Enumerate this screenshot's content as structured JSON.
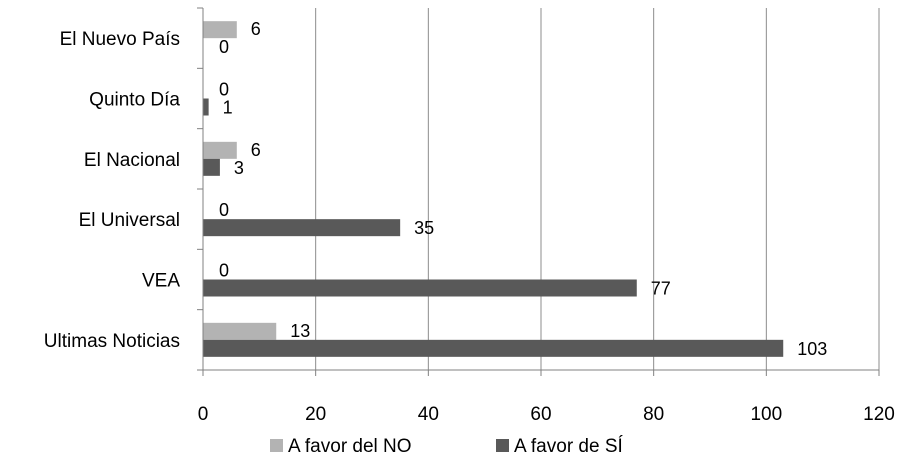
{
  "chart_data": {
    "type": "bar",
    "orientation": "horizontal",
    "categories": [
      "El Nuevo País",
      "Quinto Día",
      "El Nacional",
      "El Universal",
      "VEA",
      "Ultimas Noticias"
    ],
    "series": [
      {
        "name": "A favor del NO",
        "values": [
          6,
          0,
          6,
          0,
          0,
          13
        ],
        "color": "#b3b3b3"
      },
      {
        "name": "A favor de SÍ",
        "values": [
          0,
          1,
          3,
          35,
          77,
          103
        ],
        "color": "#595959"
      }
    ],
    "xlim": [
      0,
      120
    ],
    "xticks": [
      0,
      20,
      40,
      60,
      80,
      100,
      120
    ],
    "grid": "vertical",
    "legend_position": "bottom",
    "title": "",
    "xlabel": "",
    "ylabel": ""
  }
}
